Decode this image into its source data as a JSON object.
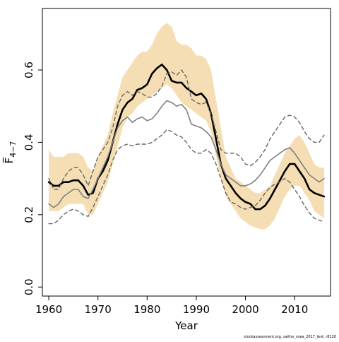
{
  "chart_data": {
    "type": "line",
    "xlabel": "Year",
    "ylabel": "F̅",
    "ylabel_subscript": "4−7",
    "xlim": [
      1958.7,
      2017.3
    ],
    "ylim": [
      -0.025,
      0.77
    ],
    "x_ticks": [
      1960,
      1970,
      1980,
      1990,
      2000,
      2010
    ],
    "x_tick_labels": [
      "1960",
      "1970",
      "1980",
      "1990",
      "2000",
      "2010"
    ],
    "y_ticks": [
      0.0,
      0.2,
      0.4,
      0.6
    ],
    "y_tick_labels": [
      "0.0",
      "0.2",
      "0.4",
      "0.6"
    ],
    "grid": false,
    "legend": "none",
    "footnote": "stockassessment.org, saithe_nsea_2017_test, r8120",
    "colors": {
      "band": "#f5deb3",
      "estimate": "#000000",
      "comparison": "#808080",
      "comparison_bounds": "#666666"
    },
    "x": [
      1960,
      1961,
      1962,
      1963,
      1964,
      1965,
      1966,
      1967,
      1968,
      1969,
      1970,
      1971,
      1972,
      1973,
      1974,
      1975,
      1976,
      1977,
      1978,
      1979,
      1980,
      1981,
      1982,
      1983,
      1984,
      1985,
      1986,
      1987,
      1988,
      1989,
      1990,
      1991,
      1992,
      1993,
      1994,
      1995,
      1996,
      1997,
      1998,
      1999,
      2000,
      2001,
      2002,
      2003,
      2004,
      2005,
      2006,
      2007,
      2008,
      2009,
      2010,
      2011,
      2012,
      2013,
      2014,
      2015,
      2016
    ],
    "series": [
      {
        "style": "band",
        "lower": [
          0.21,
          0.21,
          0.21,
          0.22,
          0.23,
          0.23,
          0.23,
          0.23,
          0.2,
          0.2,
          0.23,
          0.26,
          0.29,
          0.34,
          0.39,
          0.44,
          0.47,
          0.48,
          0.5,
          0.51,
          0.52,
          0.53,
          0.54,
          0.55,
          0.56,
          0.55,
          0.53,
          0.51,
          0.5,
          0.49,
          0.48,
          0.47,
          0.46,
          0.43,
          0.36,
          0.3,
          0.25,
          0.23,
          0.21,
          0.19,
          0.18,
          0.17,
          0.165,
          0.16,
          0.16,
          0.17,
          0.19,
          0.22,
          0.25,
          0.27,
          0.28,
          0.28,
          0.26,
          0.24,
          0.21,
          0.2,
          0.19
        ],
        "upper": [
          0.38,
          0.36,
          0.36,
          0.36,
          0.37,
          0.37,
          0.37,
          0.36,
          0.33,
          0.32,
          0.36,
          0.39,
          0.42,
          0.48,
          0.53,
          0.58,
          0.6,
          0.62,
          0.64,
          0.65,
          0.65,
          0.67,
          0.7,
          0.72,
          0.73,
          0.72,
          0.68,
          0.67,
          0.67,
          0.66,
          0.64,
          0.64,
          0.63,
          0.6,
          0.52,
          0.44,
          0.36,
          0.33,
          0.3,
          0.29,
          0.28,
          0.27,
          0.26,
          0.26,
          0.27,
          0.28,
          0.31,
          0.34,
          0.37,
          0.39,
          0.41,
          0.42,
          0.4,
          0.37,
          0.34,
          0.33,
          0.33
        ]
      },
      {
        "style": "solid-thick",
        "values": [
          0.29,
          0.28,
          0.28,
          0.29,
          0.29,
          0.295,
          0.295,
          0.28,
          0.255,
          0.26,
          0.3,
          0.32,
          0.35,
          0.4,
          0.45,
          0.49,
          0.51,
          0.52,
          0.545,
          0.55,
          0.56,
          0.59,
          0.605,
          0.615,
          0.6,
          0.57,
          0.565,
          0.565,
          0.55,
          0.54,
          0.53,
          0.535,
          0.52,
          0.48,
          0.41,
          0.34,
          0.3,
          0.28,
          0.26,
          0.245,
          0.235,
          0.23,
          0.215,
          0.215,
          0.225,
          0.245,
          0.27,
          0.295,
          0.32,
          0.34,
          0.34,
          0.32,
          0.3,
          0.27,
          0.26,
          0.255,
          0.25
        ]
      },
      {
        "style": "solid-gray",
        "values": [
          0.23,
          0.22,
          0.23,
          0.25,
          0.26,
          0.27,
          0.27,
          0.25,
          0.245,
          0.27,
          0.3,
          0.33,
          0.36,
          0.4,
          0.44,
          0.46,
          0.47,
          0.455,
          0.465,
          0.47,
          0.46,
          0.465,
          0.48,
          0.5,
          0.515,
          0.51,
          0.5,
          0.505,
          0.49,
          0.45,
          0.445,
          0.44,
          0.43,
          0.415,
          0.38,
          0.34,
          0.31,
          0.3,
          0.29,
          0.28,
          0.28,
          0.285,
          0.295,
          0.31,
          0.33,
          0.35,
          0.36,
          0.37,
          0.38,
          0.385,
          0.37,
          0.35,
          0.33,
          0.31,
          0.3,
          0.29,
          0.3
        ]
      },
      {
        "style": "dashed-upper",
        "values": [
          0.3,
          0.27,
          0.27,
          0.3,
          0.32,
          0.33,
          0.33,
          0.31,
          0.28,
          0.32,
          0.36,
          0.38,
          0.4,
          0.44,
          0.5,
          0.53,
          0.54,
          0.53,
          0.54,
          0.535,
          0.525,
          0.525,
          0.535,
          0.555,
          0.59,
          0.595,
          0.585,
          0.6,
          0.58,
          0.52,
          0.51,
          0.505,
          0.51,
          0.48,
          0.43,
          0.38,
          0.37,
          0.37,
          0.37,
          0.36,
          0.34,
          0.335,
          0.345,
          0.36,
          0.38,
          0.41,
          0.43,
          0.45,
          0.47,
          0.475,
          0.47,
          0.455,
          0.43,
          0.41,
          0.4,
          0.4,
          0.42
        ]
      },
      {
        "style": "dashed-lower",
        "values": [
          0.175,
          0.175,
          0.185,
          0.2,
          0.21,
          0.215,
          0.21,
          0.2,
          0.195,
          0.22,
          0.25,
          0.28,
          0.31,
          0.35,
          0.38,
          0.39,
          0.395,
          0.39,
          0.395,
          0.395,
          0.395,
          0.4,
          0.41,
          0.42,
          0.435,
          0.43,
          0.42,
          0.415,
          0.4,
          0.38,
          0.37,
          0.37,
          0.38,
          0.37,
          0.34,
          0.3,
          0.26,
          0.235,
          0.23,
          0.22,
          0.215,
          0.22,
          0.225,
          0.24,
          0.26,
          0.275,
          0.285,
          0.29,
          0.3,
          0.29,
          0.27,
          0.25,
          0.225,
          0.205,
          0.19,
          0.185,
          0.18
        ]
      }
    ]
  }
}
